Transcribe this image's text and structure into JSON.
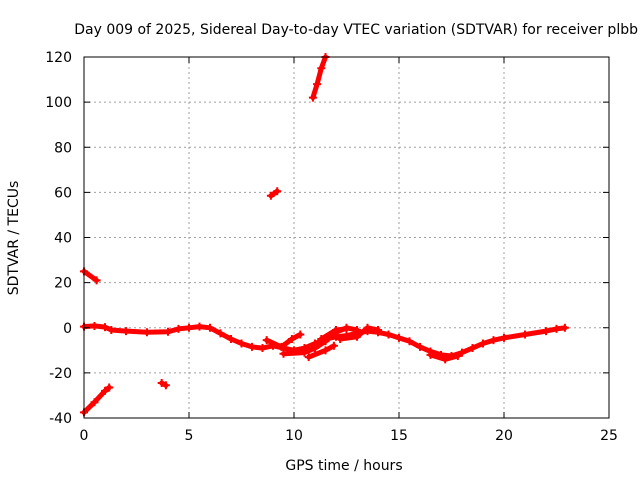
{
  "chart_data": {
    "type": "scatter",
    "title": "Day 009 of 2025, Sidereal Day-to-day VTEC variation (SDTVAR) for receiver plbb",
    "xlabel": "GPS time / hours",
    "ylabel": "SDTVAR / TECUs",
    "xlim": [
      0,
      25
    ],
    "ylim": [
      -40,
      120
    ],
    "xticks": [
      0,
      5,
      10,
      15,
      20,
      25
    ],
    "yticks": [
      -40,
      -20,
      0,
      20,
      40,
      60,
      80,
      100,
      120
    ],
    "grid": true,
    "marker_color": "#ff0000",
    "segments": [
      [
        [
          0.0,
          0.5
        ],
        [
          0.5,
          0.8
        ],
        [
          1.0,
          0.3
        ],
        [
          1.3,
          -1.0
        ],
        [
          2.0,
          -1.5
        ],
        [
          3.0,
          -2.0
        ],
        [
          4.0,
          -1.8
        ],
        [
          4.5,
          -0.5
        ],
        [
          5.0,
          0.0
        ],
        [
          5.5,
          0.5
        ],
        [
          6.0,
          0.0
        ],
        [
          6.5,
          -2.5
        ],
        [
          7.0,
          -5.0
        ],
        [
          7.5,
          -7.0
        ],
        [
          8.0,
          -8.5
        ],
        [
          8.5,
          -9.0
        ],
        [
          9.0,
          -8.0
        ],
        [
          9.5,
          -9.0
        ],
        [
          10.0,
          -10.0
        ],
        [
          10.5,
          -9.0
        ],
        [
          11.0,
          -7.0
        ],
        [
          11.5,
          -5.0
        ],
        [
          12.0,
          -4.0
        ],
        [
          12.5,
          -3.5
        ],
        [
          13.0,
          -2.5
        ],
        [
          13.5,
          -1.5
        ],
        [
          14.0,
          -2.0
        ],
        [
          14.5,
          -3.0
        ],
        [
          15.0,
          -4.5
        ],
        [
          15.5,
          -6.0
        ],
        [
          16.0,
          -8.5
        ],
        [
          16.5,
          -10.5
        ],
        [
          17.0,
          -12.0
        ],
        [
          17.5,
          -12.5
        ],
        [
          18.0,
          -11.0
        ],
        [
          18.5,
          -9.0
        ],
        [
          19.0,
          -7.0
        ],
        [
          19.5,
          -5.5
        ],
        [
          20.0,
          -4.5
        ],
        [
          21.0,
          -3.0
        ],
        [
          22.0,
          -1.5
        ],
        [
          22.5,
          -0.5
        ],
        [
          22.9,
          0.0
        ]
      ],
      [
        [
          8.7,
          -5.5
        ],
        [
          9.4,
          -8.5
        ],
        [
          9.9,
          -5.0
        ],
        [
          10.3,
          -3.0
        ]
      ],
      [
        [
          9.5,
          -11.5
        ],
        [
          10.5,
          -11.0
        ],
        [
          11.0,
          -9.0
        ],
        [
          11.5,
          -6.0
        ],
        [
          12.0,
          -2.0
        ],
        [
          12.5,
          0.0
        ],
        [
          13.0,
          -1.0
        ]
      ],
      [
        [
          10.7,
          -13.0
        ],
        [
          11.5,
          -10.0
        ],
        [
          11.9,
          -8.0
        ]
      ],
      [
        [
          11.3,
          -5.0
        ],
        [
          12.0,
          -1.0
        ],
        [
          12.5,
          -0.5
        ]
      ],
      [
        [
          12.2,
          -5.0
        ],
        [
          13.0,
          -4.0
        ],
        [
          13.5,
          0.0
        ],
        [
          14.0,
          -1.0
        ]
      ],
      [
        [
          16.5,
          -12.0
        ],
        [
          17.2,
          -14.0
        ],
        [
          17.8,
          -12.5
        ]
      ],
      [
        [
          0.0,
          25.0
        ],
        [
          0.6,
          21.0
        ]
      ],
      [
        [
          0.0,
          -37.5
        ],
        [
          0.5,
          -33.0
        ],
        [
          1.0,
          -28.0
        ],
        [
          1.2,
          -26.5
        ]
      ],
      [
        [
          3.7,
          -24.5
        ],
        [
          3.9,
          -25.5
        ]
      ],
      [
        [
          8.9,
          58.5
        ],
        [
          9.2,
          60.5
        ]
      ],
      [
        [
          10.9,
          102.0
        ],
        [
          11.1,
          108.0
        ],
        [
          11.3,
          115.0
        ],
        [
          11.5,
          120.0
        ]
      ]
    ]
  }
}
